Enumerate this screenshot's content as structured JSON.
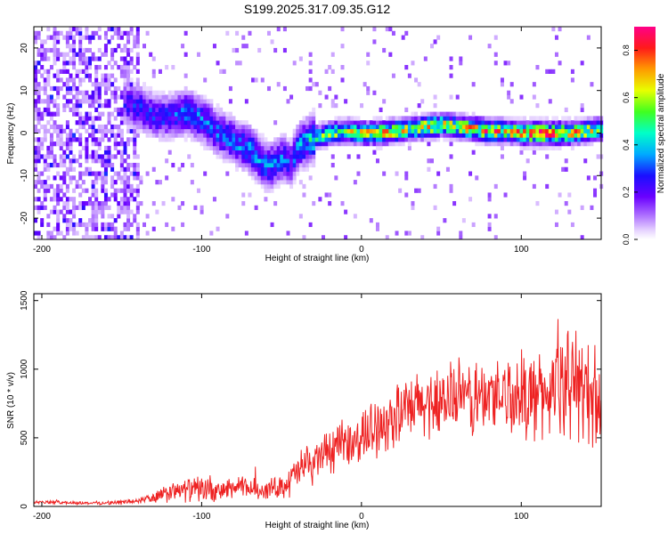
{
  "title": "S199.2025.317.09.35.G12",
  "chart_data": [
    {
      "type": "heatmap",
      "panel": "top",
      "xlabel": "Height of straight line (km)",
      "ylabel": "Frequency (Hz)",
      "xlim": [
        -205,
        150
      ],
      "ylim": [
        -25,
        25
      ],
      "xticks": [
        -200,
        -100,
        0,
        100
      ],
      "yticks": [
        -20,
        -10,
        0,
        10,
        20
      ],
      "colorbar": {
        "label": "Normalized spectral amplitude",
        "range": [
          0.0,
          0.9
        ],
        "ticks": [
          0.0,
          0.2,
          0.4,
          0.6,
          0.8
        ],
        "colormap": "rainbow-white-to-magenta"
      },
      "ridge": {
        "x": [
          -150,
          -140,
          -130,
          -120,
          -110,
          -100,
          -90,
          -80,
          -70,
          -60,
          -50,
          -45,
          -40,
          -35,
          -30,
          -20,
          -10,
          0,
          10,
          20,
          30,
          40,
          50,
          60,
          70,
          80,
          90,
          100,
          110,
          120,
          130,
          140,
          150
        ],
        "freq": [
          7,
          6,
          4,
          4,
          5,
          3,
          0,
          -2,
          -4,
          -8,
          -6,
          -7,
          -3,
          -2,
          -1,
          0,
          0.5,
          0,
          0,
          0.5,
          1,
          1.5,
          2,
          1.5,
          1,
          0.5,
          0.5,
          0,
          0,
          0,
          0,
          0.5,
          1
        ],
        "peak_amplitude": [
          0.25,
          0.3,
          0.3,
          0.3,
          0.35,
          0.35,
          0.35,
          0.35,
          0.4,
          0.35,
          0.35,
          0.3,
          0.4,
          0.45,
          0.5,
          0.6,
          0.65,
          0.7,
          0.8,
          0.7,
          0.65,
          0.75,
          0.7,
          0.7,
          0.75,
          0.8,
          0.7,
          0.85,
          0.9,
          0.85,
          0.8,
          0.7,
          0.6
        ]
      },
      "noise_region": {
        "x_range": [
          -205,
          -140
        ],
        "freq_range": [
          -25,
          25
        ],
        "amplitude": [
          0.05,
          0.3
        ]
      }
    },
    {
      "type": "line",
      "panel": "bottom",
      "xlabel": "Height of straight line (km)",
      "ylabel": "SNR (10 * v/v)",
      "xlim": [
        -205,
        150
      ],
      "ylim": [
        0,
        1550
      ],
      "xticks": [
        -200,
        -100,
        0,
        100
      ],
      "yticks": [
        0,
        500,
        1000,
        1500
      ],
      "color": "#ee2222",
      "series": [
        {
          "name": "SNR",
          "x": [
            -205,
            -190,
            -175,
            -160,
            -150,
            -140,
            -130,
            -120,
            -110,
            -100,
            -90,
            -80,
            -70,
            -60,
            -50,
            -45,
            -40,
            -35,
            -30,
            -25,
            -20,
            -15,
            -10,
            -5,
            0,
            10,
            20,
            30,
            40,
            50,
            60,
            70,
            80,
            90,
            100,
            110,
            120,
            130,
            140,
            150
          ],
          "y": [
            30,
            30,
            25,
            25,
            30,
            40,
            60,
            100,
            120,
            130,
            100,
            140,
            130,
            120,
            150,
            180,
            250,
            300,
            320,
            380,
            400,
            420,
            450,
            470,
            500,
            600,
            650,
            700,
            750,
            780,
            800,
            780,
            800,
            820,
            820,
            800,
            850,
            900,
            850,
            800
          ],
          "noise_amplitude": [
            10,
            10,
            10,
            10,
            15,
            20,
            40,
            60,
            70,
            80,
            60,
            70,
            70,
            60,
            70,
            100,
            120,
            120,
            130,
            130,
            140,
            140,
            150,
            150,
            160,
            180,
            200,
            200,
            220,
            220,
            230,
            240,
            250,
            250,
            260,
            270,
            300,
            330,
            330,
            320
          ]
        }
      ]
    }
  ]
}
